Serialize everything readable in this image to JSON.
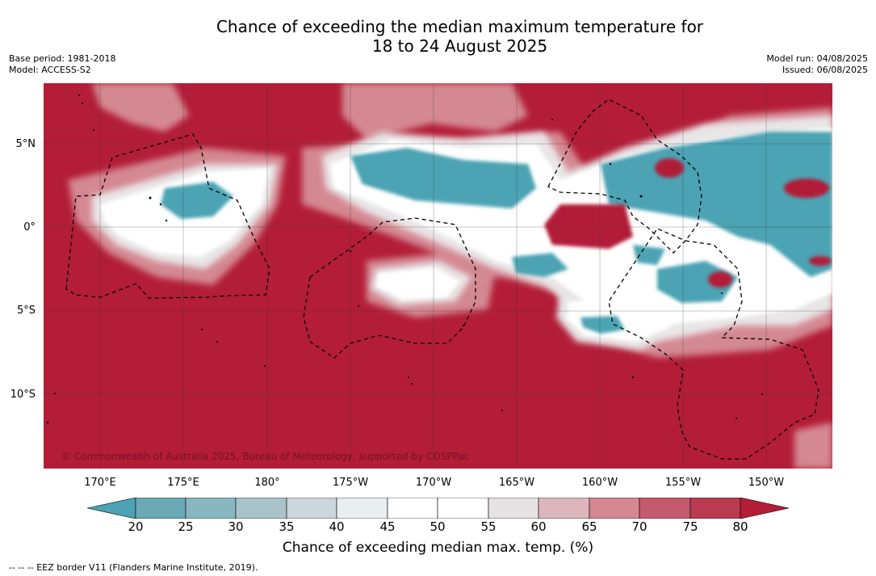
{
  "title_line1": "Chance of exceeding the median maximum temperature for",
  "title_line2": "18 to 24 August 2025",
  "base_period": "Base period: 1981-2018",
  "model": "Model: ACCESS-S2",
  "model_run": "Model run: 04/08/2025",
  "issued": "Issued: 06/08/2025",
  "copyright": "© Commonwealth of Australia 2025, Bureau of Meteorology, supported by COSPPac",
  "lat_labels": [
    "5°N",
    "0°",
    "5°S",
    "10°S"
  ],
  "lon_labels": [
    "170°E",
    "175°E",
    "180°",
    "175°W",
    "170°W",
    "165°W",
    "160°W",
    "155°W",
    "150°W"
  ],
  "colorbar": {
    "ticks": [
      "20",
      "25",
      "30",
      "35",
      "40",
      "45",
      "50",
      "55",
      "60",
      "65",
      "70",
      "75",
      "80"
    ],
    "label": "Chance of exceeding median max. temp. (%)",
    "colors": [
      "#4ba3b3",
      "#6aa9b5",
      "#88b7c2",
      "#a8c4ca",
      "#cbd7da",
      "#e9eef0",
      "#ffffff",
      "#ffffff",
      "#e7e3e4",
      "#ddb6bd",
      "#d48892",
      "#c45b6c",
      "#b93b4f",
      "#b31d37"
    ]
  },
  "footnote": "--  --  -- EEZ border V11 (Flanders Marine Institute, 2019).",
  "colors": {
    "high": "#b31d37",
    "low": "#4ba3b3",
    "neutral": "#ffffff"
  }
}
